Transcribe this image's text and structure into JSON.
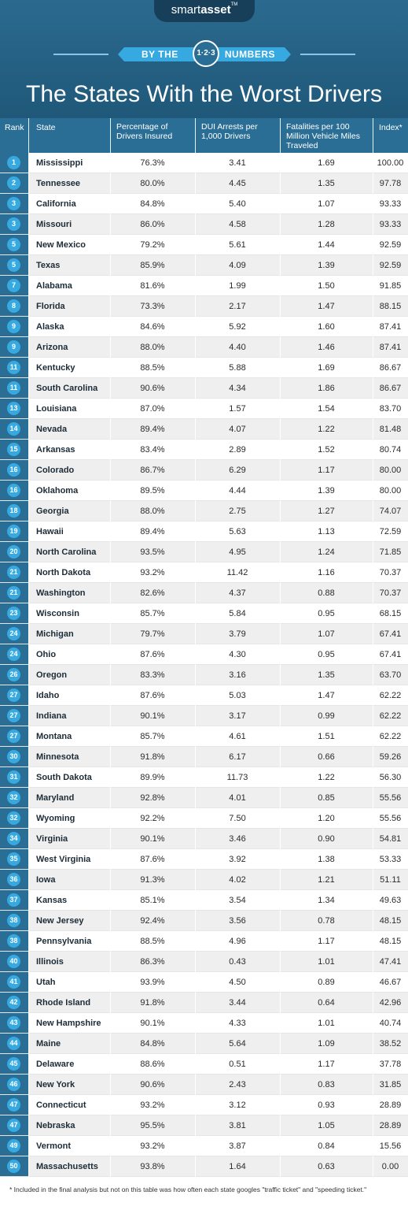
{
  "brand": {
    "smart": "smart",
    "asset": "asset",
    "tm": "TM"
  },
  "banner": {
    "left": "BY THE",
    "numbers": "1·2·3",
    "right": "NUMBERS"
  },
  "title": "The States With the Worst Drivers",
  "columns": {
    "rank": "Rank",
    "state": "State",
    "insured": "Percentage of Drivers Insured",
    "dui": "DUI Arrests per 1,000 Drivers",
    "fatalities": "Fatalities per 100 Million Vehicle Miles Traveled",
    "index": "Index*"
  },
  "rows": [
    {
      "rank": "1",
      "state": "Mississippi",
      "insured": "76.3%",
      "dui": "3.41",
      "fatalities": "1.69",
      "index": "100.00"
    },
    {
      "rank": "2",
      "state": "Tennessee",
      "insured": "80.0%",
      "dui": "4.45",
      "fatalities": "1.35",
      "index": "97.78"
    },
    {
      "rank": "3",
      "state": "California",
      "insured": "84.8%",
      "dui": "5.40",
      "fatalities": "1.07",
      "index": "93.33"
    },
    {
      "rank": "3",
      "state": "Missouri",
      "insured": "86.0%",
      "dui": "4.58",
      "fatalities": "1.28",
      "index": "93.33"
    },
    {
      "rank": "5",
      "state": "New Mexico",
      "insured": "79.2%",
      "dui": "5.61",
      "fatalities": "1.44",
      "index": "92.59"
    },
    {
      "rank": "5",
      "state": "Texas",
      "insured": "85.9%",
      "dui": "4.09",
      "fatalities": "1.39",
      "index": "92.59"
    },
    {
      "rank": "7",
      "state": "Alabama",
      "insured": "81.6%",
      "dui": "1.99",
      "fatalities": "1.50",
      "index": "91.85"
    },
    {
      "rank": "8",
      "state": "Florida",
      "insured": "73.3%",
      "dui": "2.17",
      "fatalities": "1.47",
      "index": "88.15"
    },
    {
      "rank": "9",
      "state": "Alaska",
      "insured": "84.6%",
      "dui": "5.92",
      "fatalities": "1.60",
      "index": "87.41"
    },
    {
      "rank": "9",
      "state": "Arizona",
      "insured": "88.0%",
      "dui": "4.40",
      "fatalities": "1.46",
      "index": "87.41"
    },
    {
      "rank": "11",
      "state": "Kentucky",
      "insured": "88.5%",
      "dui": "5.88",
      "fatalities": "1.69",
      "index": "86.67"
    },
    {
      "rank": "11",
      "state": "South Carolina",
      "insured": "90.6%",
      "dui": "4.34",
      "fatalities": "1.86",
      "index": "86.67"
    },
    {
      "rank": "13",
      "state": "Louisiana",
      "insured": "87.0%",
      "dui": "1.57",
      "fatalities": "1.54",
      "index": "83.70"
    },
    {
      "rank": "14",
      "state": "Nevada",
      "insured": "89.4%",
      "dui": "4.07",
      "fatalities": "1.22",
      "index": "81.48"
    },
    {
      "rank": "15",
      "state": "Arkansas",
      "insured": "83.4%",
      "dui": "2.89",
      "fatalities": "1.52",
      "index": "80.74"
    },
    {
      "rank": "16",
      "state": "Colorado",
      "insured": "86.7%",
      "dui": "6.29",
      "fatalities": "1.17",
      "index": "80.00"
    },
    {
      "rank": "16",
      "state": "Oklahoma",
      "insured": "89.5%",
      "dui": "4.44",
      "fatalities": "1.39",
      "index": "80.00"
    },
    {
      "rank": "18",
      "state": "Georgia",
      "insured": "88.0%",
      "dui": "2.75",
      "fatalities": "1.27",
      "index": "74.07"
    },
    {
      "rank": "19",
      "state": "Hawaii",
      "insured": "89.4%",
      "dui": "5.63",
      "fatalities": "1.13",
      "index": "72.59"
    },
    {
      "rank": "20",
      "state": "North Carolina",
      "insured": "93.5%",
      "dui": "4.95",
      "fatalities": "1.24",
      "index": "71.85"
    },
    {
      "rank": "21",
      "state": "North Dakota",
      "insured": "93.2%",
      "dui": "11.42",
      "fatalities": "1.16",
      "index": "70.37"
    },
    {
      "rank": "21",
      "state": "Washington",
      "insured": "82.6%",
      "dui": "4.37",
      "fatalities": "0.88",
      "index": "70.37"
    },
    {
      "rank": "23",
      "state": "Wisconsin",
      "insured": "85.7%",
      "dui": "5.84",
      "fatalities": "0.95",
      "index": "68.15"
    },
    {
      "rank": "24",
      "state": "Michigan",
      "insured": "79.7%",
      "dui": "3.79",
      "fatalities": "1.07",
      "index": "67.41"
    },
    {
      "rank": "24",
      "state": "Ohio",
      "insured": "87.6%",
      "dui": "4.30",
      "fatalities": "0.95",
      "index": "67.41"
    },
    {
      "rank": "26",
      "state": "Oregon",
      "insured": "83.3%",
      "dui": "3.16",
      "fatalities": "1.35",
      "index": "63.70"
    },
    {
      "rank": "27",
      "state": "Idaho",
      "insured": "87.6%",
      "dui": "5.03",
      "fatalities": "1.47",
      "index": "62.22"
    },
    {
      "rank": "27",
      "state": "Indiana",
      "insured": "90.1%",
      "dui": "3.17",
      "fatalities": "0.99",
      "index": "62.22"
    },
    {
      "rank": "27",
      "state": "Montana",
      "insured": "85.7%",
      "dui": "4.61",
      "fatalities": "1.51",
      "index": "62.22"
    },
    {
      "rank": "30",
      "state": "Minnesota",
      "insured": "91.8%",
      "dui": "6.17",
      "fatalities": "0.66",
      "index": "59.26"
    },
    {
      "rank": "31",
      "state": "South Dakota",
      "insured": "89.9%",
      "dui": "11.73",
      "fatalities": "1.22",
      "index": "56.30"
    },
    {
      "rank": "32",
      "state": "Maryland",
      "insured": "92.8%",
      "dui": "4.01",
      "fatalities": "0.85",
      "index": "55.56"
    },
    {
      "rank": "32",
      "state": "Wyoming",
      "insured": "92.2%",
      "dui": "7.50",
      "fatalities": "1.20",
      "index": "55.56"
    },
    {
      "rank": "34",
      "state": "Virginia",
      "insured": "90.1%",
      "dui": "3.46",
      "fatalities": "0.90",
      "index": "54.81"
    },
    {
      "rank": "35",
      "state": "West Virginia",
      "insured": "87.6%",
      "dui": "3.92",
      "fatalities": "1.38",
      "index": "53.33"
    },
    {
      "rank": "36",
      "state": "Iowa",
      "insured": "91.3%",
      "dui": "4.02",
      "fatalities": "1.21",
      "index": "51.11"
    },
    {
      "rank": "37",
      "state": "Kansas",
      "insured": "85.1%",
      "dui": "3.54",
      "fatalities": "1.34",
      "index": "49.63"
    },
    {
      "rank": "38",
      "state": "New Jersey",
      "insured": "92.4%",
      "dui": "3.56",
      "fatalities": "0.78",
      "index": "48.15"
    },
    {
      "rank": "38",
      "state": "Pennsylvania",
      "insured": "88.5%",
      "dui": "4.96",
      "fatalities": "1.17",
      "index": "48.15"
    },
    {
      "rank": "40",
      "state": "Illinois",
      "insured": "86.3%",
      "dui": "0.43",
      "fatalities": "1.01",
      "index": "47.41"
    },
    {
      "rank": "41",
      "state": "Utah",
      "insured": "93.9%",
      "dui": "4.50",
      "fatalities": "0.89",
      "index": "46.67"
    },
    {
      "rank": "42",
      "state": "Rhode Island",
      "insured": "91.8%",
      "dui": "3.44",
      "fatalities": "0.64",
      "index": "42.96"
    },
    {
      "rank": "43",
      "state": "New Hampshire",
      "insured": "90.1%",
      "dui": "4.33",
      "fatalities": "1.01",
      "index": "40.74"
    },
    {
      "rank": "44",
      "state": "Maine",
      "insured": "84.8%",
      "dui": "5.64",
      "fatalities": "1.09",
      "index": "38.52"
    },
    {
      "rank": "45",
      "state": "Delaware",
      "insured": "88.6%",
      "dui": "0.51",
      "fatalities": "1.17",
      "index": "37.78"
    },
    {
      "rank": "46",
      "state": "New York",
      "insured": "90.6%",
      "dui": "2.43",
      "fatalities": "0.83",
      "index": "31.85"
    },
    {
      "rank": "47",
      "state": "Connecticut",
      "insured": "93.2%",
      "dui": "3.12",
      "fatalities": "0.93",
      "index": "28.89"
    },
    {
      "rank": "47",
      "state": "Nebraska",
      "insured": "95.5%",
      "dui": "3.81",
      "fatalities": "1.05",
      "index": "28.89"
    },
    {
      "rank": "49",
      "state": "Vermont",
      "insured": "93.2%",
      "dui": "3.87",
      "fatalities": "0.84",
      "index": "15.56"
    },
    {
      "rank": "50",
      "state": "Massachusetts",
      "insured": "93.8%",
      "dui": "1.64",
      "fatalities": "0.63",
      "index": "0.00"
    }
  ],
  "footnote": "* Included in the final analysis but not on this table was how often each state googles \"traffic ticket\" and \"speeding ticket.\"",
  "colors": {
    "header": "#2a6e96",
    "badge": "#36a9e1",
    "alt_row": "#efefef"
  }
}
